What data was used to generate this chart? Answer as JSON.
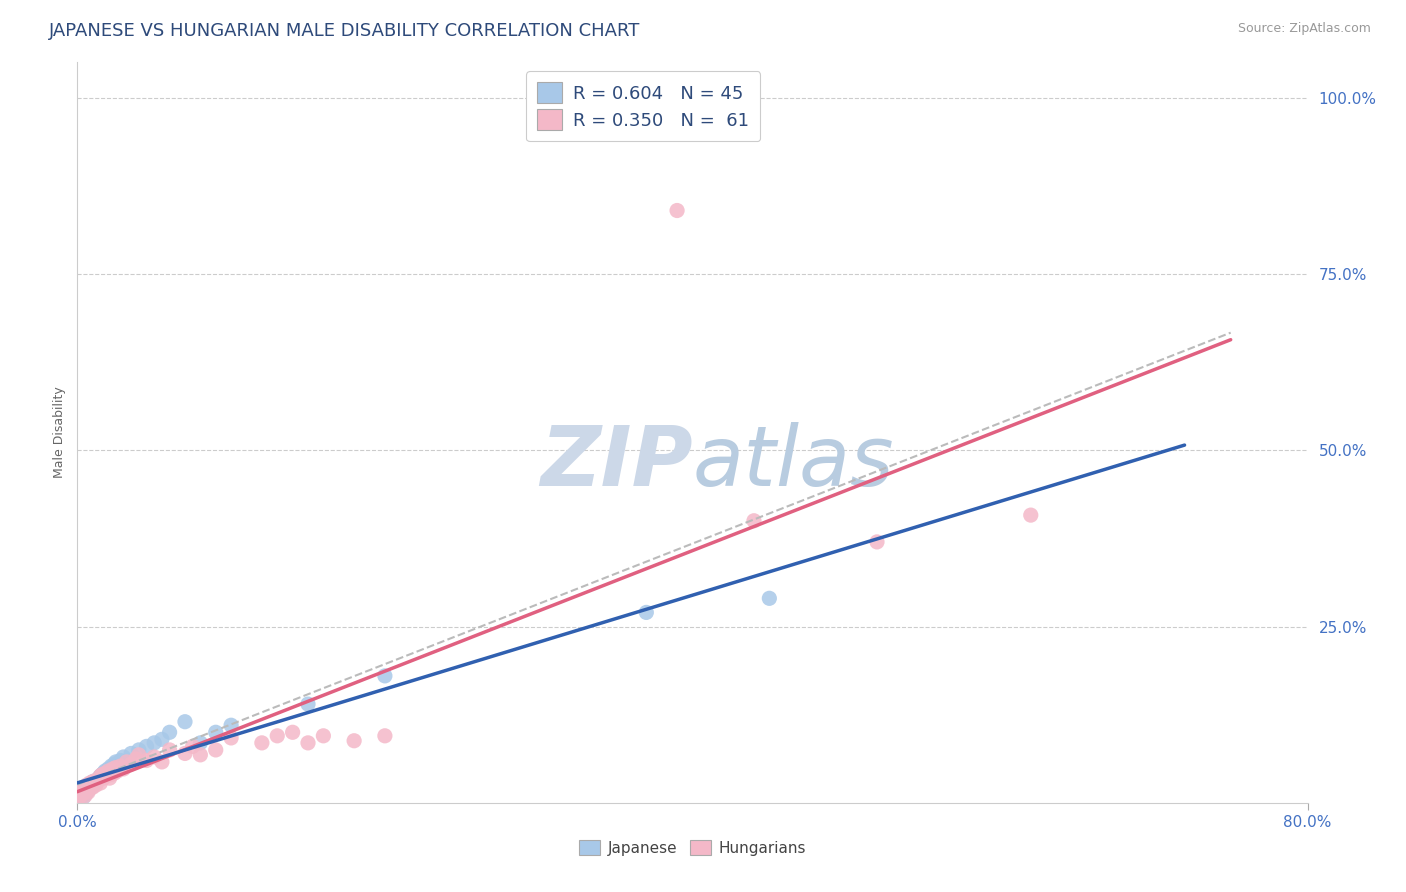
{
  "title": "JAPANESE VS HUNGARIAN MALE DISABILITY CORRELATION CHART",
  "source_text": "Source: ZipAtlas.com",
  "ylabel": "Male Disability",
  "xlim": [
    0.0,
    0.8
  ],
  "ylim": [
    0.0,
    1.05
  ],
  "xtick_labels": [
    "0.0%",
    "80.0%"
  ],
  "xtick_positions": [
    0.0,
    0.8
  ],
  "ytick_labels": [
    "25.0%",
    "50.0%",
    "75.0%",
    "100.0%"
  ],
  "ytick_positions": [
    0.25,
    0.5,
    0.75,
    1.0
  ],
  "title_color": "#2e4a7a",
  "title_fontsize": 13,
  "axis_label_color": "#666666",
  "tick_color": "#4472c4",
  "source_color": "#999999",
  "blue_color": "#a8c8e8",
  "pink_color": "#f4b8c8",
  "blue_line_color": "#3060b0",
  "pink_line_color": "#e06080",
  "gray_dash_color": "#bbbbbb",
  "grid_color": "#cccccc",
  "watermark_color": "#dde8f0",
  "japanese_points": [
    [
      0.001,
      0.005
    ],
    [
      0.002,
      0.008
    ],
    [
      0.002,
      0.012
    ],
    [
      0.003,
      0.01
    ],
    [
      0.003,
      0.015
    ],
    [
      0.004,
      0.008
    ],
    [
      0.004,
      0.018
    ],
    [
      0.005,
      0.012
    ],
    [
      0.005,
      0.02
    ],
    [
      0.006,
      0.015
    ],
    [
      0.006,
      0.022
    ],
    [
      0.007,
      0.018
    ],
    [
      0.007,
      0.025
    ],
    [
      0.008,
      0.02
    ],
    [
      0.009,
      0.022
    ],
    [
      0.01,
      0.025
    ],
    [
      0.01,
      0.03
    ],
    [
      0.011,
      0.028
    ],
    [
      0.012,
      0.03
    ],
    [
      0.013,
      0.032
    ],
    [
      0.014,
      0.035
    ],
    [
      0.015,
      0.038
    ],
    [
      0.016,
      0.04
    ],
    [
      0.017,
      0.042
    ],
    [
      0.018,
      0.045
    ],
    [
      0.02,
      0.048
    ],
    [
      0.022,
      0.052
    ],
    [
      0.024,
      0.055
    ],
    [
      0.025,
      0.058
    ],
    [
      0.028,
      0.06
    ],
    [
      0.03,
      0.065
    ],
    [
      0.035,
      0.07
    ],
    [
      0.04,
      0.075
    ],
    [
      0.045,
      0.08
    ],
    [
      0.05,
      0.085
    ],
    [
      0.055,
      0.09
    ],
    [
      0.06,
      0.1
    ],
    [
      0.07,
      0.115
    ],
    [
      0.08,
      0.085
    ],
    [
      0.09,
      0.1
    ],
    [
      0.1,
      0.11
    ],
    [
      0.15,
      0.14
    ],
    [
      0.2,
      0.18
    ],
    [
      0.37,
      0.27
    ],
    [
      0.45,
      0.29
    ]
  ],
  "hungarian_points": [
    [
      0.001,
      0.008
    ],
    [
      0.002,
      0.01
    ],
    [
      0.002,
      0.015
    ],
    [
      0.003,
      0.012
    ],
    [
      0.003,
      0.018
    ],
    [
      0.004,
      0.015
    ],
    [
      0.005,
      0.01
    ],
    [
      0.005,
      0.02
    ],
    [
      0.006,
      0.018
    ],
    [
      0.006,
      0.025
    ],
    [
      0.007,
      0.015
    ],
    [
      0.007,
      0.022
    ],
    [
      0.008,
      0.02
    ],
    [
      0.008,
      0.028
    ],
    [
      0.009,
      0.025
    ],
    [
      0.01,
      0.022
    ],
    [
      0.01,
      0.03
    ],
    [
      0.011,
      0.028
    ],
    [
      0.012,
      0.025
    ],
    [
      0.012,
      0.032
    ],
    [
      0.013,
      0.03
    ],
    [
      0.014,
      0.032
    ],
    [
      0.015,
      0.028
    ],
    [
      0.015,
      0.038
    ],
    [
      0.016,
      0.04
    ],
    [
      0.017,
      0.035
    ],
    [
      0.018,
      0.042
    ],
    [
      0.019,
      0.038
    ],
    [
      0.02,
      0.045
    ],
    [
      0.021,
      0.035
    ],
    [
      0.022,
      0.04
    ],
    [
      0.023,
      0.048
    ],
    [
      0.024,
      0.042
    ],
    [
      0.025,
      0.05
    ],
    [
      0.026,
      0.045
    ],
    [
      0.028,
      0.052
    ],
    [
      0.03,
      0.048
    ],
    [
      0.032,
      0.058
    ],
    [
      0.035,
      0.055
    ],
    [
      0.038,
      0.062
    ],
    [
      0.04,
      0.068
    ],
    [
      0.045,
      0.06
    ],
    [
      0.05,
      0.065
    ],
    [
      0.055,
      0.058
    ],
    [
      0.06,
      0.075
    ],
    [
      0.07,
      0.07
    ],
    [
      0.075,
      0.08
    ],
    [
      0.08,
      0.068
    ],
    [
      0.09,
      0.075
    ],
    [
      0.1,
      0.092
    ],
    [
      0.12,
      0.085
    ],
    [
      0.13,
      0.095
    ],
    [
      0.14,
      0.1
    ],
    [
      0.15,
      0.085
    ],
    [
      0.16,
      0.095
    ],
    [
      0.18,
      0.088
    ],
    [
      0.2,
      0.095
    ],
    [
      0.39,
      0.84
    ],
    [
      0.44,
      0.4
    ],
    [
      0.52,
      0.37
    ],
    [
      0.62,
      0.408
    ]
  ]
}
